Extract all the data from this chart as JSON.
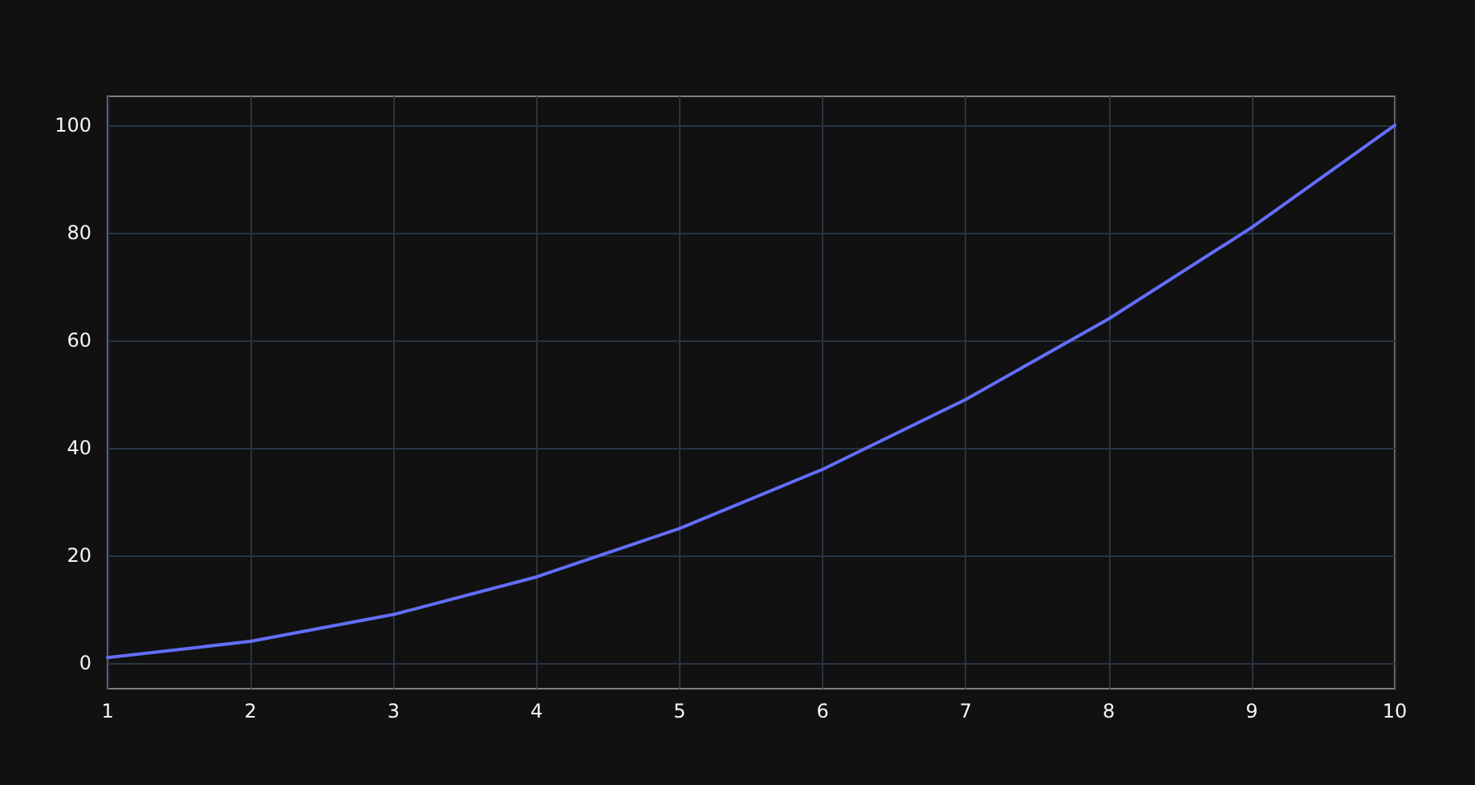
{
  "chart_data": {
    "type": "line",
    "x": [
      1,
      2,
      3,
      4,
      5,
      6,
      7,
      8,
      9,
      10
    ],
    "series": [
      {
        "color": "#636efa",
        "values": [
          1,
          4,
          9,
          16,
          25,
          36,
          49,
          64,
          81,
          100
        ]
      }
    ],
    "xlim": [
      1,
      10
    ],
    "xticks": [
      1,
      2,
      3,
      4,
      5,
      6,
      7,
      8,
      9,
      10
    ],
    "ylim": [
      -4.8,
      105.4
    ],
    "yticks": [
      0,
      20,
      40,
      60,
      80,
      100
    ],
    "grid": true,
    "marker": "none",
    "line_style": "solid"
  }
}
